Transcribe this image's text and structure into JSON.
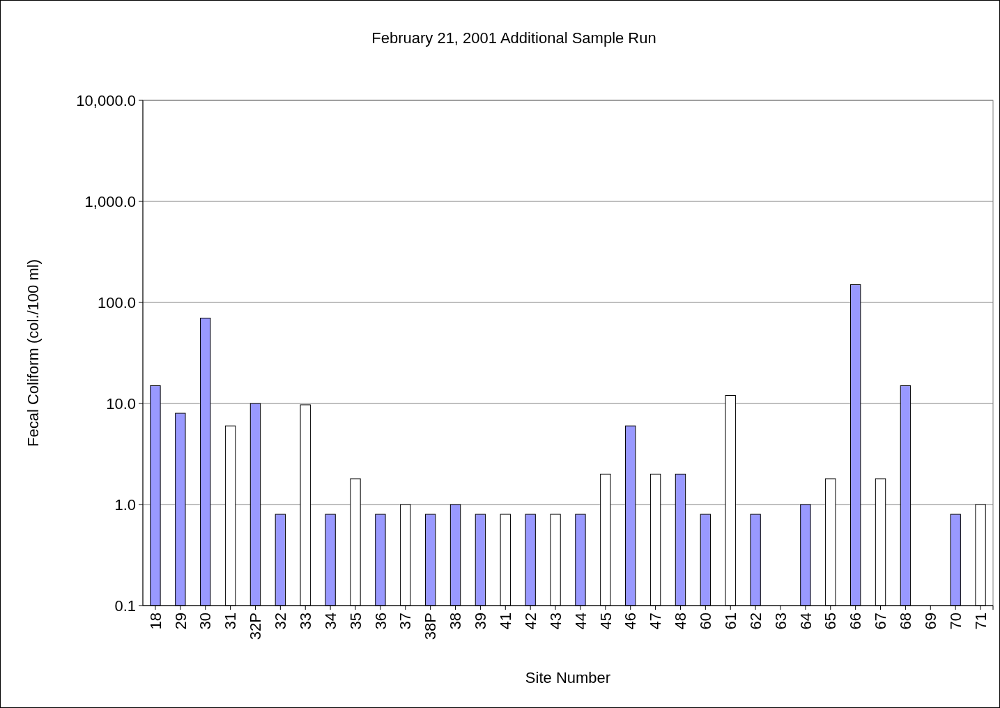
{
  "chart_data": {
    "type": "bar",
    "title": "February 21, 2001 Additional Sample Run",
    "xlabel": "Site Number",
    "ylabel": "Fecal Coliform (col./100 ml)",
    "categories": [
      "18",
      "29",
      "30",
      "31",
      "32P",
      "32",
      "33",
      "34",
      "35",
      "36",
      "37",
      "38P",
      "38",
      "39",
      "41",
      "42",
      "43",
      "44",
      "45",
      "46",
      "47",
      "48",
      "60",
      "61",
      "62",
      "63",
      "64",
      "65",
      "66",
      "67",
      "68",
      "69",
      "70",
      "71"
    ],
    "values": [
      15,
      8,
      70,
      6,
      10,
      0.8,
      9.7,
      0.8,
      1.8,
      0.8,
      1,
      0.8,
      1,
      0.8,
      0.8,
      0.8,
      0.8,
      0.8,
      2,
      6,
      2,
      2,
      0.8,
      12,
      0.8,
      null,
      1,
      1.8,
      150,
      1.8,
      15,
      null,
      0.8,
      1
    ],
    "colors": [
      "#9999ff",
      "#9999ff",
      "#9999ff",
      "#ffffff",
      "#9999ff",
      "#9999ff",
      "#ffffff",
      "#9999ff",
      "#ffffff",
      "#9999ff",
      "#ffffff",
      "#9999ff",
      "#9999ff",
      "#9999ff",
      "#ffffff",
      "#9999ff",
      "#ffffff",
      "#9999ff",
      "#ffffff",
      "#9999ff",
      "#ffffff",
      "#9999ff",
      "#9999ff",
      "#ffffff",
      "#9999ff",
      null,
      "#9999ff",
      "#ffffff",
      "#9999ff",
      "#ffffff",
      "#9999ff",
      null,
      "#9999ff",
      "#ffffff"
    ],
    "log": true,
    "ylim": [
      0.1,
      10000
    ],
    "yticks": [
      {
        "value": 0.1,
        "label": "0.1"
      },
      {
        "value": 1,
        "label": "1.0"
      },
      {
        "value": 10,
        "label": "10.0"
      },
      {
        "value": 100,
        "label": "100.0"
      },
      {
        "value": 1000,
        "label": "1,000.0"
      },
      {
        "value": 10000,
        "label": "10,000.0"
      }
    ],
    "grid": "y"
  }
}
